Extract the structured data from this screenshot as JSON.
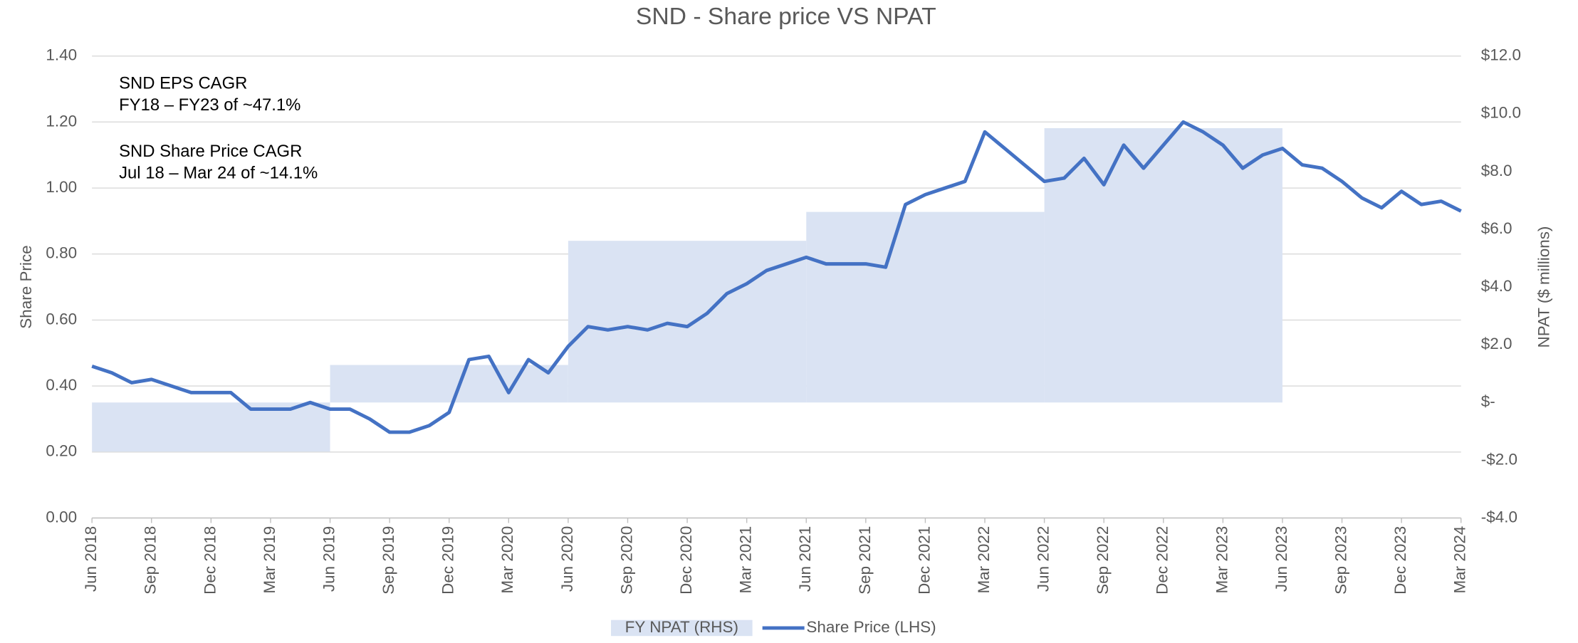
{
  "chart_data": {
    "type": "combo",
    "title": "SND - Share price VS NPAT",
    "ylabel": "Share Price",
    "y2label": "NPAT ($ millions)",
    "annotations": [
      [
        "SND EPS CAGR",
        "FY18 – FY23 of ~47.1%"
      ],
      [
        "SND Share Price CAGR",
        "Jul 18 – Mar 24 of ~14.1%"
      ]
    ],
    "xticks": [
      "Jun 2018",
      "Sep 2018",
      "Dec 2018",
      "Mar 2019",
      "Jun 2019",
      "Sep 2019",
      "Dec 2019",
      "Mar 2020",
      "Jun 2020",
      "Sep 2020",
      "Dec 2020",
      "Mar 2021",
      "Jun 2021",
      "Sep 2021",
      "Dec 2021",
      "Mar 2022",
      "Jun 2022",
      "Sep 2022",
      "Dec 2022",
      "Mar 2023",
      "Jun 2023",
      "Sep 2023",
      "Dec 2023",
      "Mar 2024"
    ],
    "ylim": [
      0,
      1.4
    ],
    "yticks": [
      {
        "value": 0,
        "label": "0.00"
      },
      {
        "value": 0.2,
        "label": "0.20"
      },
      {
        "value": 0.4,
        "label": "0.40"
      },
      {
        "value": 0.6,
        "label": "0.60"
      },
      {
        "value": 0.8,
        "label": "0.80"
      },
      {
        "value": 1.0,
        "label": "1.00"
      },
      {
        "value": 1.2,
        "label": "1.20"
      },
      {
        "value": 1.4,
        "label": "1.40"
      }
    ],
    "y2lim": [
      -4,
      12
    ],
    "y2ticks": [
      {
        "value": -4,
        "label": "-$4.0"
      },
      {
        "value": -2,
        "label": "-$2.0"
      },
      {
        "value": 0,
        "label": "$-"
      },
      {
        "value": 2,
        "label": "$2.0"
      },
      {
        "value": 4,
        "label": "$4.0"
      },
      {
        "value": 6,
        "label": "$6.0"
      },
      {
        "value": 8,
        "label": "$8.0"
      },
      {
        "value": 10,
        "label": "$10.0"
      },
      {
        "value": 12,
        "label": "$12.0"
      }
    ],
    "grid": true,
    "legend": "bottom",
    "series": [
      {
        "name": "FY NPAT (RHS)",
        "type": "step-area",
        "axis": "y2",
        "color": "#dae3f3",
        "x": [
          "Jun 2018",
          "Jun 2019",
          "Jun 2020",
          "Jun 2021",
          "Jun 2022",
          "Jun 2023"
        ],
        "values": [
          -1.7,
          1.3,
          5.6,
          6.6,
          9.5,
          null
        ]
      },
      {
        "name": "Share Price (LHS)",
        "type": "line",
        "color": "#4472c4",
        "x": [
          "Jun 2018",
          "Jul 2018",
          "Aug 2018",
          "Sep 2018",
          "Oct 2018",
          "Nov 2018",
          "Dec 2018",
          "Jan 2019",
          "Feb 2019",
          "Mar 2019",
          "Apr 2019",
          "May 2019",
          "Jun 2019",
          "Jul 2019",
          "Aug 2019",
          "Sep 2019",
          "Oct 2019",
          "Nov 2019",
          "Dec 2019",
          "Jan 2020",
          "Feb 2020",
          "Mar 2020",
          "Apr 2020",
          "May 2020",
          "Jun 2020",
          "Jul 2020",
          "Aug 2020",
          "Sep 2020",
          "Oct 2020",
          "Nov 2020",
          "Dec 2020",
          "Jan 2021",
          "Feb 2021",
          "Mar 2021",
          "Apr 2021",
          "May 2021",
          "Jun 2021",
          "Jul 2021",
          "Aug 2021",
          "Sep 2021",
          "Oct 2021",
          "Nov 2021",
          "Dec 2021",
          "Jan 2022",
          "Feb 2022",
          "Mar 2022",
          "Apr 2022",
          "May 2022",
          "Jun 2022",
          "Jul 2022",
          "Aug 2022",
          "Sep 2022",
          "Oct 2022",
          "Nov 2022",
          "Dec 2022",
          "Jan 2023",
          "Feb 2023",
          "Mar 2023",
          "Apr 2023",
          "May 2023",
          "Jun 2023",
          "Jul 2023",
          "Aug 2023",
          "Sep 2023",
          "Oct 2023",
          "Nov 2023",
          "Dec 2023",
          "Jan 2024",
          "Feb 2024",
          "Mar 2024"
        ],
        "values": [
          0.46,
          0.44,
          0.41,
          0.42,
          0.4,
          0.38,
          0.38,
          0.38,
          0.33,
          0.33,
          0.33,
          0.35,
          0.33,
          0.33,
          0.3,
          0.26,
          0.26,
          0.28,
          0.32,
          0.48,
          0.49,
          0.38,
          0.48,
          0.44,
          0.52,
          0.58,
          0.57,
          0.58,
          0.57,
          0.59,
          0.58,
          0.62,
          0.68,
          0.71,
          0.75,
          0.77,
          0.79,
          0.77,
          0.77,
          0.77,
          0.76,
          0.95,
          0.98,
          1.0,
          1.02,
          1.17,
          1.12,
          1.07,
          1.02,
          1.03,
          1.09,
          1.01,
          1.13,
          1.06,
          1.13,
          1.2,
          1.17,
          1.13,
          1.06,
          1.1,
          1.12,
          1.07,
          1.06,
          1.02,
          0.97,
          0.94,
          0.99,
          0.95,
          0.96,
          0.93
        ]
      }
    ]
  }
}
